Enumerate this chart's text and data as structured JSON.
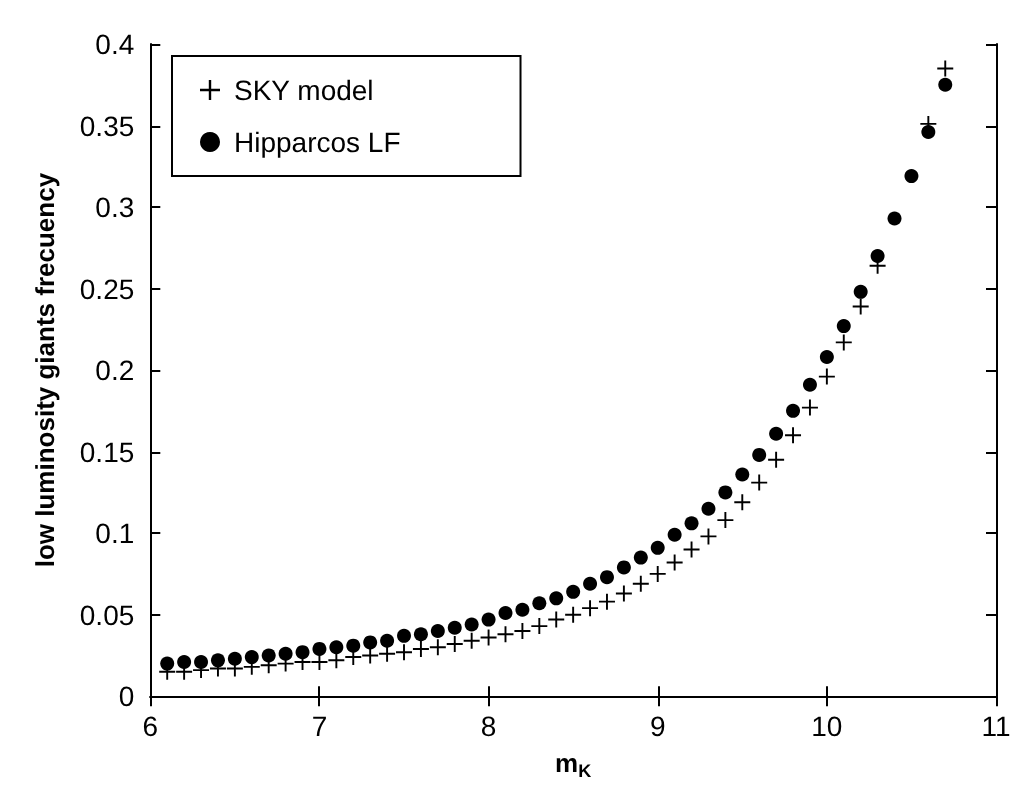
{
  "chart_data": {
    "type": "scatter",
    "xlabel": "m$_{K}$",
    "ylabel": "low luminosity giants frecuency",
    "x": [
      6.1,
      6.2,
      6.3,
      6.4,
      6.5,
      6.6,
      6.7,
      6.8,
      6.9,
      7.0,
      7.1,
      7.2,
      7.3,
      7.4,
      7.5,
      7.6,
      7.7,
      7.8,
      7.9,
      8.0,
      8.1,
      8.2,
      8.3,
      8.4,
      8.5,
      8.6,
      8.7,
      8.8,
      8.9,
      9.0,
      9.1,
      9.2,
      9.3,
      9.4,
      9.5,
      9.6,
      9.7,
      9.8,
      9.9,
      10.0,
      10.1,
      10.2,
      10.3,
      10.4,
      10.5,
      10.6,
      10.7
    ],
    "series": [
      {
        "name": "SKY model",
        "color": "#000000",
        "marker": "cross",
        "values": [
          0.015,
          0.015,
          0.016,
          0.017,
          0.017,
          0.018,
          0.019,
          0.02,
          0.021,
          0.021,
          0.022,
          0.024,
          0.025,
          0.026,
          0.027,
          0.029,
          0.03,
          0.032,
          0.034,
          0.036,
          0.038,
          0.04,
          0.043,
          0.047,
          0.05,
          0.054,
          0.058,
          0.063,
          0.069,
          0.075,
          0.082,
          0.09,
          0.098,
          0.108,
          0.119,
          0.131,
          0.145,
          0.16,
          0.177,
          0.196,
          0.217,
          0.239,
          0.264,
          null,
          null,
          0.351,
          0.385
        ]
      },
      {
        "name": "Hipparcos LF",
        "color": "#000000",
        "marker": "circle",
        "values": [
          0.02,
          0.021,
          0.021,
          0.022,
          0.023,
          0.024,
          0.025,
          0.026,
          0.027,
          0.029,
          0.03,
          0.031,
          0.033,
          0.034,
          0.037,
          0.038,
          0.04,
          0.042,
          0.044,
          0.047,
          0.051,
          0.053,
          0.057,
          0.06,
          0.064,
          0.069,
          0.073,
          0.079,
          0.085,
          0.091,
          0.099,
          0.106,
          0.115,
          0.125,
          0.136,
          0.148,
          0.161,
          0.175,
          0.191,
          0.208,
          0.227,
          0.248,
          0.27,
          0.293,
          0.319,
          0.346,
          0.375
        ]
      }
    ],
    "xlim": [
      6,
      11
    ],
    "xticks": [
      6,
      7,
      8,
      9,
      10,
      11
    ],
    "ylim": [
      0,
      0.4
    ],
    "yticks": [
      0,
      0.05,
      0.1,
      0.15,
      0.2,
      0.25,
      0.3,
      0.35,
      0.4
    ],
    "legend": "top left",
    "grid": false
  }
}
